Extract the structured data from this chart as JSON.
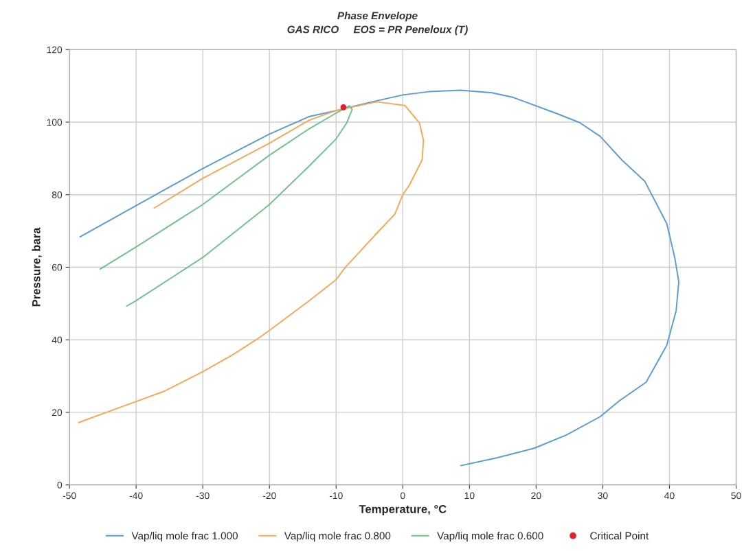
{
  "chart_data": {
    "type": "line",
    "title": "Phase Envelope",
    "subtitle": "GAS RICO     EOS = PR Peneloux (T)",
    "xlabel": "Temperature, °C",
    "ylabel": "Pressure, bara",
    "xlim": [
      -50,
      50
    ],
    "xticks": [
      -50,
      -40,
      -30,
      -20,
      -10,
      0,
      10,
      20,
      30,
      40,
      50
    ],
    "ylim": [
      0,
      120
    ],
    "yticks": [
      0,
      20,
      40,
      60,
      80,
      100,
      120
    ],
    "grid": true,
    "legend": "bottom",
    "marker": "none",
    "line_style": "solid",
    "series": [
      {
        "name": "Vap/liq mole frac 1.000",
        "color": "#5b9bd5",
        "x": [
          -48.4,
          -40,
          -30,
          -20,
          -14.1,
          -10,
          -4.6,
          0,
          3.9,
          8.7,
          13.4,
          16.6,
          22.9,
          26.5,
          29.6,
          32.9,
          36.3,
          39.6,
          40.8,
          41.4,
          41.0,
          39.6,
          36.5,
          32.5,
          29.6,
          24.5,
          19.7,
          14.2,
          8.7
        ],
        "values": [
          68.4,
          77,
          87.2,
          96.7,
          101.5,
          103.2,
          105.6,
          107.5,
          108.4,
          108.8,
          108.1,
          106.8,
          102.5,
          99.9,
          96.1,
          89.5,
          83.7,
          72,
          62.6,
          56,
          48,
          38.5,
          28.3,
          23.2,
          18.8,
          13.7,
          10.1,
          7.5,
          5.3
        ]
      },
      {
        "name": "Vap/liq mole frac 0.800",
        "color": "#f4a957",
        "x": [
          -37.3,
          -30,
          -20,
          -14.1,
          -10,
          -3.9,
          0.3,
          2.5,
          3.1,
          2.9,
          1,
          0,
          -1.2,
          -3.8,
          -8.6,
          -10,
          -14,
          -20,
          -22,
          -25.4,
          -30,
          -35.8,
          -40,
          -44.3,
          -48.6
        ],
        "values": [
          76.3,
          84.5,
          94.2,
          100.5,
          103.2,
          105.6,
          104.6,
          99.8,
          95,
          89.6,
          82.7,
          80,
          74.6,
          69.6,
          60,
          56.6,
          50.8,
          42.6,
          40,
          36,
          31.2,
          25.8,
          23,
          20.1,
          17.2
        ]
      },
      {
        "name": "Vap/liq mole frac 0.600",
        "color": "#72c08f",
        "x": [
          -45.4,
          -40,
          -30,
          -20,
          -14.1,
          -10,
          -8,
          -7.6,
          -8.4,
          -10,
          -14.1,
          -20,
          -30,
          -40,
          -41.4
        ],
        "values": [
          59.5,
          65.6,
          77.3,
          90.9,
          98.1,
          102.5,
          104.5,
          103.5,
          99.8,
          95.4,
          87.8,
          77.3,
          62.7,
          50.8,
          49.3
        ]
      },
      {
        "name": "Critical Point",
        "type": "scatter",
        "marker": "circle",
        "color": "#e0202a",
        "x": [
          -8.9
        ],
        "values": [
          104.1
        ]
      }
    ]
  }
}
